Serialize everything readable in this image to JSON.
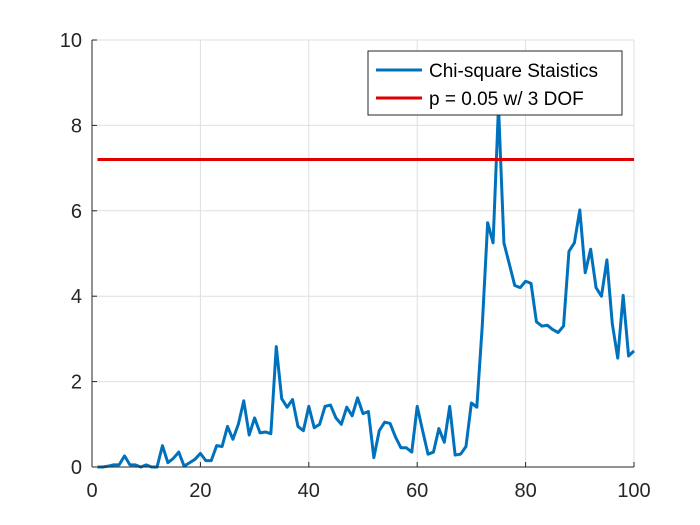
{
  "chart_data": {
    "type": "line",
    "title": "",
    "xlabel": "",
    "ylabel": "",
    "xlim": [
      0,
      100
    ],
    "ylim": [
      0,
      10
    ],
    "x_ticks": [
      0,
      20,
      40,
      60,
      80,
      100
    ],
    "y_ticks": [
      0,
      2,
      4,
      6,
      8,
      10
    ],
    "x_tick_labels": [
      "0",
      "20",
      "40",
      "60",
      "80",
      "100"
    ],
    "y_tick_labels": [
      "0",
      "2",
      "4",
      "6",
      "8",
      "10"
    ],
    "grid": true,
    "legend_position": "top-right",
    "series": [
      {
        "name": "Chi-square Staistics",
        "color": "#0072BD",
        "x": [
          1,
          2,
          3,
          4,
          5,
          6,
          7,
          8,
          9,
          10,
          11,
          12,
          13,
          14,
          15,
          16,
          17,
          18,
          19,
          20,
          21,
          22,
          23,
          24,
          25,
          26,
          27,
          28,
          29,
          30,
          31,
          32,
          33,
          34,
          35,
          36,
          37,
          38,
          39,
          40,
          41,
          42,
          43,
          44,
          45,
          46,
          47,
          48,
          49,
          50,
          51,
          52,
          53,
          54,
          55,
          56,
          57,
          58,
          59,
          60,
          61,
          62,
          63,
          64,
          65,
          66,
          67,
          68,
          69,
          70,
          71,
          72,
          73,
          74,
          75,
          76,
          77,
          78,
          79,
          80,
          81,
          82,
          83,
          84,
          85,
          86,
          87,
          88,
          89,
          90,
          91,
          92,
          93,
          94,
          95,
          96,
          97,
          98,
          99,
          100
        ],
        "y": [
          0.0,
          0.0,
          0.02,
          0.05,
          0.05,
          0.26,
          0.05,
          0.05,
          0.0,
          0.05,
          0.0,
          0.0,
          0.5,
          0.1,
          0.2,
          0.35,
          0.02,
          0.1,
          0.18,
          0.32,
          0.15,
          0.15,
          0.5,
          0.48,
          0.95,
          0.65,
          1.0,
          1.55,
          0.75,
          1.15,
          0.8,
          0.82,
          0.78,
          2.82,
          1.6,
          1.4,
          1.58,
          0.95,
          0.85,
          1.42,
          0.92,
          1.0,
          1.42,
          1.45,
          1.15,
          1.0,
          1.4,
          1.2,
          1.62,
          1.25,
          1.3,
          0.22,
          0.85,
          1.05,
          1.02,
          0.7,
          0.45,
          0.45,
          0.35,
          1.42,
          0.85,
          0.3,
          0.35,
          0.9,
          0.58,
          1.42,
          0.28,
          0.3,
          0.48,
          1.5,
          1.4,
          3.3,
          5.72,
          5.25,
          8.45,
          5.25,
          4.75,
          4.25,
          4.2,
          4.35,
          4.3,
          3.4,
          3.3,
          3.32,
          3.22,
          3.15,
          3.3,
          5.05,
          5.25,
          6.02,
          4.55,
          5.1,
          4.2,
          4.0,
          4.85,
          3.35,
          2.55,
          4.02,
          2.6,
          2.72
        ]
      },
      {
        "name": "p = 0.05 w/ 3 DOF",
        "color": "#E00000",
        "x": [
          1,
          100
        ],
        "y": [
          7.2,
          7.2
        ]
      }
    ]
  }
}
